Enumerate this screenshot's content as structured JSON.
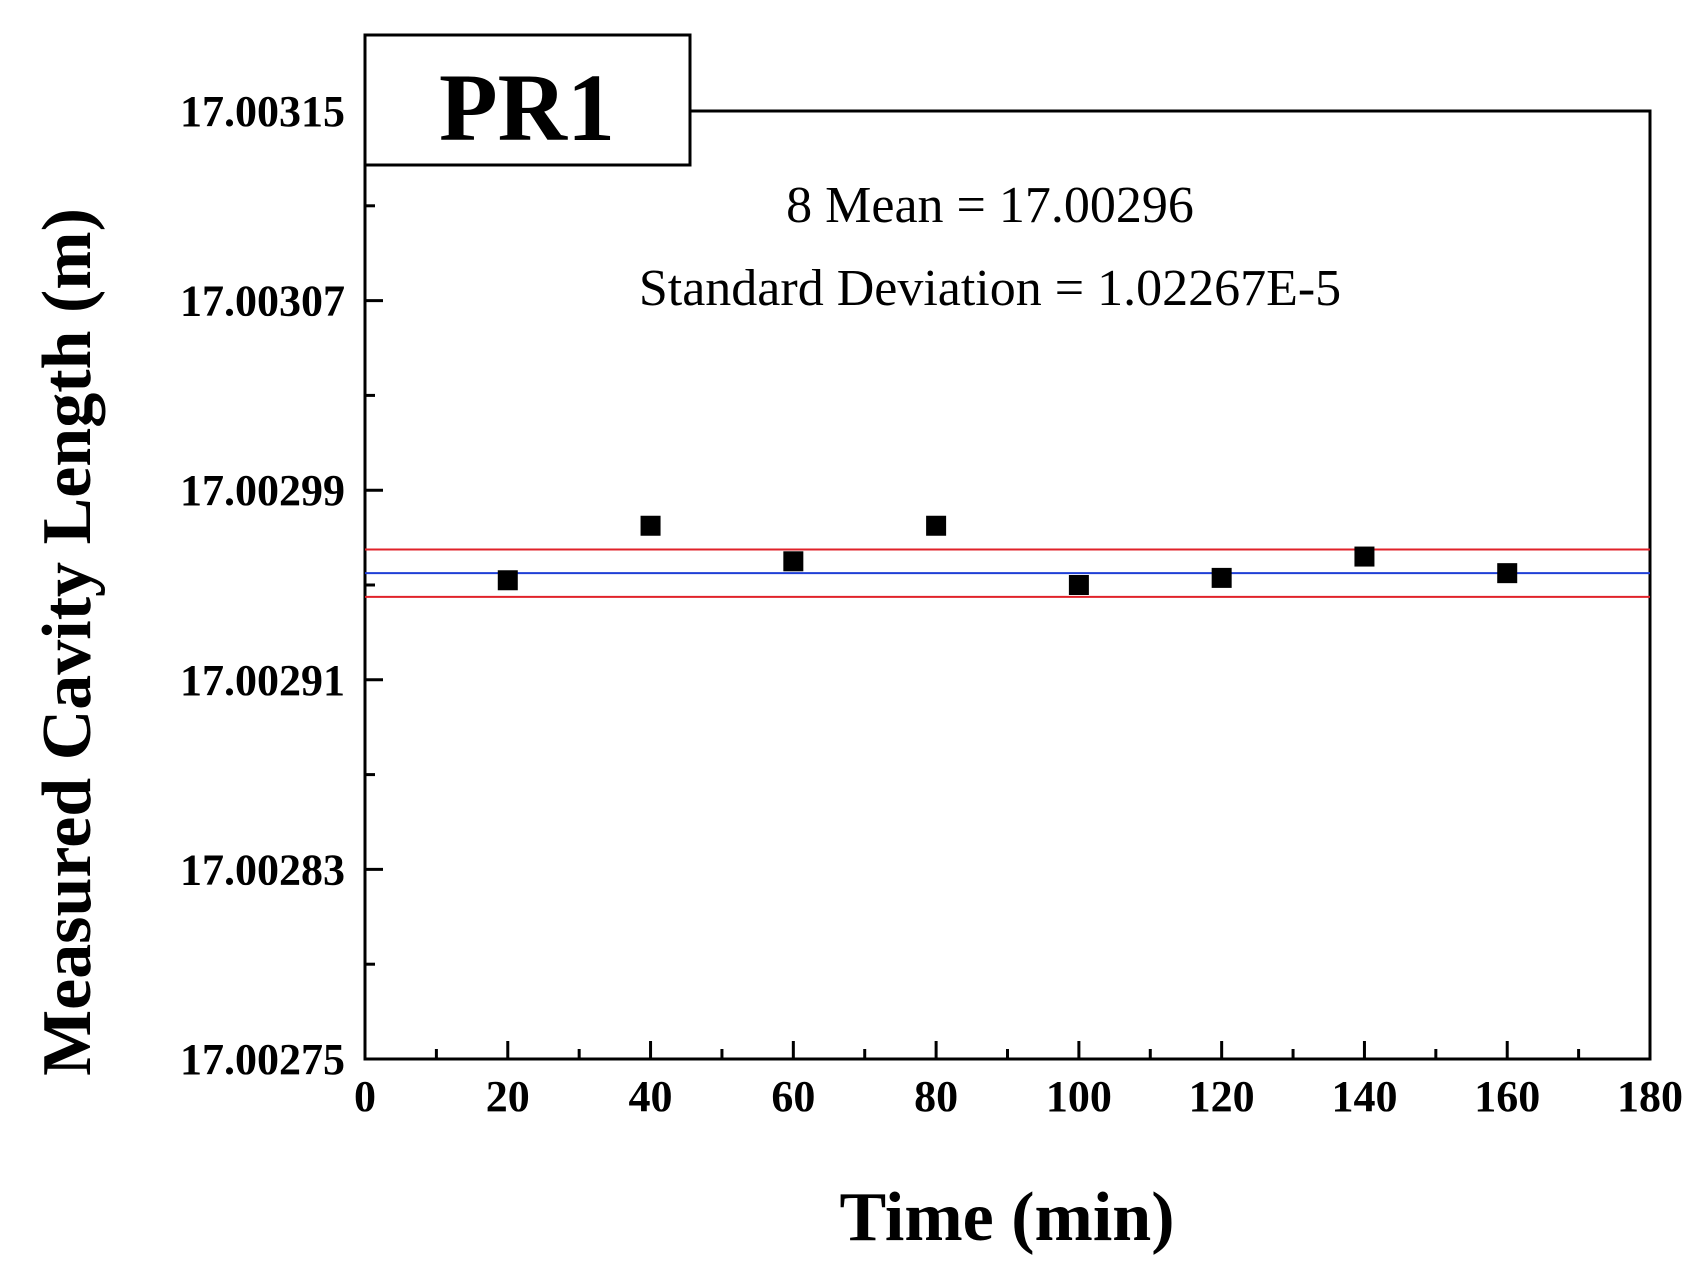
{
  "chart_data": {
    "type": "scatter",
    "panel_label": "PR1",
    "xlabel": "Time (min)",
    "ylabel": "Measured Cavity Length (m)",
    "xlim": [
      0,
      180
    ],
    "ylim": [
      17.00275,
      17.00315
    ],
    "x_ticks": [
      0,
      20,
      40,
      60,
      80,
      100,
      120,
      140,
      160,
      180
    ],
    "y_ticks": [
      "17.00275",
      "17.00283",
      "17.00291",
      "17.00299",
      "17.00307",
      "17.00315"
    ],
    "series": [
      {
        "name": "Measured Cavity Length",
        "marker": "square",
        "x": [
          20,
          40,
          60,
          80,
          100,
          120,
          140,
          160
        ],
        "y": [
          17.002952,
          17.002975,
          17.00296,
          17.002975,
          17.00295,
          17.002953,
          17.002962,
          17.002955
        ]
      }
    ],
    "mean_line": {
      "value": 17.002955,
      "color": "#1f3fd6"
    },
    "std_bounds": {
      "lower": 17.002945,
      "upper": 17.002965,
      "color": "#e0222a"
    },
    "annotation": {
      "line1": "8 Mean = 17.00296",
      "line2": "Standard Deviation = 1.02267E-5"
    },
    "grid": false
  }
}
